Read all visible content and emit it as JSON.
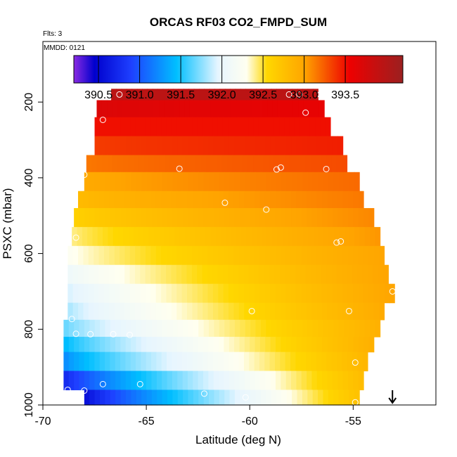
{
  "chart_data": {
    "type": "heatmap",
    "title": "ORCAS RF03 CO2_FMPD_SUM",
    "flights_note": "Flts: 3",
    "date_note": "MMDD: 0121",
    "xlabel": "Latitude (deg N)",
    "ylabel": "PSXC (mbar)",
    "xlim": [
      -70,
      -51
    ],
    "ylim": [
      1000,
      40
    ],
    "x_ticks": [
      -70,
      -65,
      -60,
      -55
    ],
    "x_tick_labels": [
      "-70",
      "-65",
      "-60",
      "-55"
    ],
    "y_ticks": [
      200,
      400,
      600,
      800,
      1000
    ],
    "y_tick_labels": [
      "200",
      "400",
      "600",
      "800",
      "1000"
    ],
    "colorbar": {
      "min": 390.2,
      "max": 394.2,
      "ticks": [
        390.5,
        391.0,
        391.5,
        392.0,
        392.5,
        393.0,
        393.5
      ],
      "tick_labels": [
        "390.5",
        "391.0",
        "391.5",
        "392.0",
        "392.5",
        "393.0",
        "393.5"
      ],
      "color_stops": [
        {
          "v": 390.2,
          "c": "#8a2be2"
        },
        {
          "v": 390.45,
          "c": "#0000cd"
        },
        {
          "v": 390.9,
          "c": "#1e40ff"
        },
        {
          "v": 391.45,
          "c": "#00bfff"
        },
        {
          "v": 391.95,
          "c": "#e6f5ff"
        },
        {
          "v": 392.3,
          "c": "#fffff0"
        },
        {
          "v": 392.55,
          "c": "#ffd700"
        },
        {
          "v": 393.0,
          "c": "#ffa500"
        },
        {
          "v": 393.55,
          "c": "#ee0000"
        },
        {
          "v": 394.2,
          "c": "#9b2020"
        }
      ]
    },
    "rows": [
      {
        "p_top": 165,
        "p_bot": 195,
        "x_start": -66.7,
        "x_end": -56.7,
        "v_left": 393.95,
        "v_right": 393.95
      },
      {
        "p_top": 195,
        "p_bot": 240,
        "x_start": -67.4,
        "x_end": -56.4,
        "v_left": 393.7,
        "v_right": 393.6
      },
      {
        "p_top": 240,
        "p_bot": 290,
        "x_start": -67.5,
        "x_end": -56.1,
        "v_left": 393.5,
        "v_right": 393.5
      },
      {
        "p_top": 290,
        "p_bot": 340,
        "x_start": -67.5,
        "x_end": -55.5,
        "v_left": 393.35,
        "v_right": 393.45
      },
      {
        "p_top": 340,
        "p_bot": 385,
        "x_start": -67.9,
        "x_end": -55.3,
        "v_left": 393.15,
        "v_right": 393.3
      },
      {
        "p_top": 385,
        "p_bot": 435,
        "x_start": -68.0,
        "x_end": -54.7,
        "v_left": 392.95,
        "v_right": 393.2
      },
      {
        "p_top": 435,
        "p_bot": 480,
        "x_start": -68.3,
        "x_end": -54.5,
        "v_left": 392.8,
        "v_right": 393.15
      },
      {
        "p_top": 480,
        "p_bot": 530,
        "x_start": -68.5,
        "x_end": -54.0,
        "v_left": 392.6,
        "v_right": 393.1
      },
      {
        "p_top": 530,
        "p_bot": 580,
        "x_start": -68.6,
        "x_end": -53.7,
        "v_left": 392.4,
        "v_right": 393.05
      },
      {
        "p_top": 580,
        "p_bot": 630,
        "x_start": -68.8,
        "x_end": -53.5,
        "v_left": 392.25,
        "v_right": 393.0
      },
      {
        "p_top": 630,
        "p_bot": 680,
        "x_start": -68.8,
        "x_end": -53.3,
        "v_left": 392.05,
        "v_right": 393.0
      },
      {
        "p_top": 680,
        "p_bot": 730,
        "x_start": -68.8,
        "x_end": -53.0,
        "v_left": 391.9,
        "v_right": 393.0
      },
      {
        "p_top": 730,
        "p_bot": 775,
        "x_start": -68.8,
        "x_end": -53.5,
        "v_left": 391.8,
        "v_right": 392.95
      },
      {
        "p_top": 775,
        "p_bot": 820,
        "x_start": -69.0,
        "x_end": -53.7,
        "v_left": 391.65,
        "v_right": 392.9
      },
      {
        "p_top": 820,
        "p_bot": 860,
        "x_start": -69.0,
        "x_end": -54.0,
        "v_left": 391.4,
        "v_right": 392.9
      },
      {
        "p_top": 860,
        "p_bot": 910,
        "x_start": -69.0,
        "x_end": -54.3,
        "v_left": 391.2,
        "v_right": 392.85
      },
      {
        "p_top": 910,
        "p_bot": 960,
        "x_start": -69.0,
        "x_end": -54.5,
        "v_left": 390.7,
        "v_right": 392.8
      },
      {
        "p_top": 960,
        "p_bot": 1000,
        "x_start": -68.0,
        "x_end": -54.7,
        "v_left": 390.5,
        "v_right": 392.75
      }
    ],
    "flight_points": [
      {
        "x": -66.3,
        "p": 180
      },
      {
        "x": -58.1,
        "p": 180
      },
      {
        "x": -57.6,
        "p": 180
      },
      {
        "x": -56.6,
        "p": 180
      },
      {
        "x": -57.3,
        "p": 228
      },
      {
        "x": -67.1,
        "p": 247
      },
      {
        "x": -68.0,
        "p": 392
      },
      {
        "x": -63.4,
        "p": 376
      },
      {
        "x": -58.5,
        "p": 373
      },
      {
        "x": -58.7,
        "p": 378
      },
      {
        "x": -56.3,
        "p": 377
      },
      {
        "x": -61.2,
        "p": 466
      },
      {
        "x": -59.2,
        "p": 484
      },
      {
        "x": -68.4,
        "p": 558
      },
      {
        "x": -55.8,
        "p": 571
      },
      {
        "x": -55.6,
        "p": 568
      },
      {
        "x": -53.1,
        "p": 700
      },
      {
        "x": -59.9,
        "p": 752
      },
      {
        "x": -55.2,
        "p": 752
      },
      {
        "x": -68.6,
        "p": 773
      },
      {
        "x": -68.4,
        "p": 812
      },
      {
        "x": -67.7,
        "p": 813
      },
      {
        "x": -66.6,
        "p": 813
      },
      {
        "x": -65.8,
        "p": 815
      },
      {
        "x": -54.9,
        "p": 888
      },
      {
        "x": -67.1,
        "p": 945
      },
      {
        "x": -65.3,
        "p": 945
      },
      {
        "x": -68.8,
        "p": 960
      },
      {
        "x": -68.0,
        "p": 962
      },
      {
        "x": -62.2,
        "p": 970
      },
      {
        "x": -60.2,
        "p": 980
      },
      {
        "x": -54.9,
        "p": 993
      }
    ],
    "arrow_marker": {
      "x": -53.1,
      "label": "arrow"
    }
  }
}
